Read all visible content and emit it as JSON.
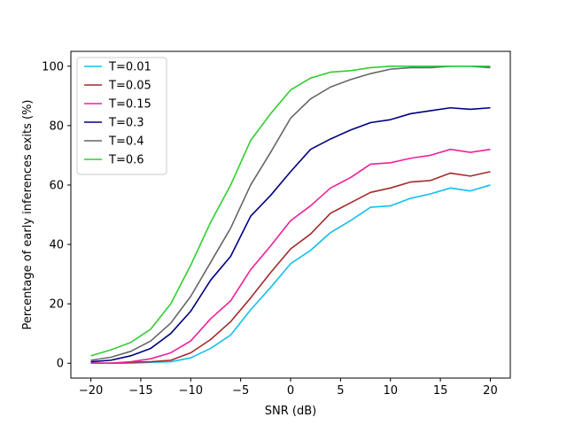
{
  "chart_data": {
    "type": "line",
    "title": "",
    "xlabel": "SNR (dB)",
    "ylabel": "Percentage of early inferences exits (%)",
    "xlim": [
      -22,
      22
    ],
    "ylim": [
      -5,
      105
    ],
    "xticks": [
      -20,
      -15,
      -10,
      -5,
      0,
      5,
      10,
      15,
      20
    ],
    "xtick_labels": [
      "−20",
      "−15",
      "−10",
      "−5",
      "0",
      "5",
      "10",
      "15",
      "20"
    ],
    "yticks": [
      0,
      20,
      40,
      60,
      80,
      100
    ],
    "ytick_labels": [
      "0",
      "20",
      "40",
      "60",
      "80",
      "100"
    ],
    "grid": false,
    "legend_position": "top-left",
    "x": [
      -20,
      -18,
      -16,
      -14,
      -12,
      -10,
      -8,
      -6,
      -4,
      -2,
      0,
      2,
      4,
      6,
      8,
      10,
      12,
      14,
      16,
      18,
      20
    ],
    "series": [
      {
        "name": "T=0.01",
        "color": "#12bfee",
        "values": [
          0,
          0,
          0,
          0.3,
          0.5,
          1.8,
          5,
          9.5,
          18,
          25.5,
          33.5,
          38,
          44,
          48,
          52.5,
          53,
          55.5,
          57,
          59,
          58,
          60
        ]
      },
      {
        "name": "T=0.05",
        "color": "#a52a2a",
        "values": [
          0,
          0,
          0.3,
          0.5,
          1,
          3.5,
          8,
          14,
          22,
          30.5,
          38.5,
          43.5,
          50.5,
          54,
          57.5,
          59,
          61,
          61.5,
          64,
          63,
          64.5
        ]
      },
      {
        "name": "T=0.15",
        "color": "#f0209a",
        "values": [
          0,
          0,
          0.5,
          1.5,
          3.5,
          7.5,
          15,
          21,
          31.5,
          39.5,
          48,
          53,
          59,
          62.5,
          67,
          67.5,
          69,
          70,
          72,
          71,
          72
        ]
      },
      {
        "name": "T=0.3",
        "color": "#000080",
        "values": [
          0.5,
          1,
          2.5,
          5,
          10,
          17.5,
          28,
          36,
          49.5,
          56.5,
          64.5,
          72,
          75.5,
          78.5,
          81,
          82,
          84,
          85,
          86,
          85.5,
          86
        ]
      },
      {
        "name": "T=0.4",
        "color": "#666666",
        "values": [
          1,
          2,
          4,
          7.5,
          13.5,
          22.5,
          34,
          45.5,
          60,
          71,
          82.5,
          89,
          93,
          95.5,
          97.5,
          99,
          99.5,
          99.5,
          100,
          100,
          99.5
        ]
      },
      {
        "name": "T=0.6",
        "color": "#32cd32",
        "values": [
          2.5,
          4.5,
          7,
          11.5,
          20,
          33,
          47.5,
          60,
          75,
          84,
          92,
          96,
          98,
          98.5,
          99.5,
          100,
          100,
          100,
          100,
          100,
          100
        ]
      }
    ]
  }
}
